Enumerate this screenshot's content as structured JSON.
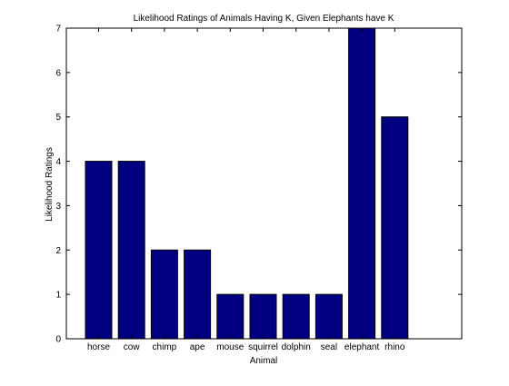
{
  "chart_data": {
    "type": "bar",
    "title": "Likelihood Ratings of Animals Having K, Given Elephants have K",
    "xlabel": "Animal",
    "ylabel": "Likelihood Ratings",
    "categories": [
      "horse",
      "cow",
      "chimp",
      "ape",
      "mouse",
      "squirrel",
      "dolphin",
      "seal",
      "elephant",
      "rhino"
    ],
    "values": [
      4,
      4,
      2,
      2,
      1,
      1,
      1,
      1,
      7,
      5
    ],
    "ylim": [
      0,
      7
    ],
    "yticks": [
      "0",
      "1",
      "2",
      "3",
      "4",
      "5",
      "6",
      "7"
    ],
    "grid": false,
    "legend": "none",
    "bar_color": "#000080",
    "edge_color": "#000000"
  }
}
